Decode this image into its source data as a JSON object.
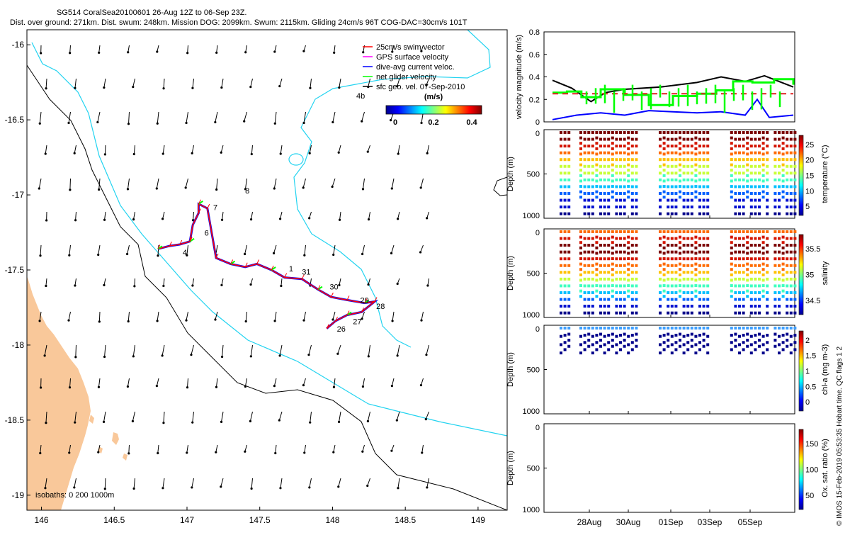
{
  "header": {
    "title": "SG514 CoralSea20100601 26-Aug 12Z to 06-Sep 23Z.",
    "subtitle": "Dist. over ground: 271km. Dist. swum: 248km. Mission DOG: 2099km. Swum: 2115km. Gliding 24cm/s 96T COG-DAC=30cm/s 101T"
  },
  "footer_note": "© IMOS 15-Feb-2019 05:53:35 Hobart time. QC flags 1  2",
  "colors": {
    "land": "#f9c89a",
    "isobath_200": "#000000",
    "isobath_1000": "#22d3f0",
    "swim": "#ff0000",
    "gps": "#ff00ff",
    "dac": "#0000ff",
    "net": "#00ff00",
    "sfc": "#000000",
    "mean_line": "#e02020"
  },
  "chart_data": [
    {
      "type": "map",
      "xlim": [
        145.9,
        149.2
      ],
      "ylim": [
        -19.1,
        -15.9
      ],
      "xticks": [
        "146",
        "146.5",
        "147",
        "147.5",
        "148",
        "148.5",
        "149"
      ],
      "yticks": [
        "-16",
        "-16.5",
        "-17",
        "-17.5",
        "-18",
        "-18.5",
        "-19"
      ],
      "legend": [
        {
          "label": "25cm/s swim vector",
          "color": "#ff0000"
        },
        {
          "label": "GPS surface velocity",
          "color": "#ff00ff"
        },
        {
          "label": "dive-avg current veloc.",
          "color": "#0000ff"
        },
        {
          "label": "net glider velocity",
          "color": "#00ff00"
        },
        {
          "label": "sfc geo. vel. 07-Sep-2010",
          "color": "#000000"
        }
      ],
      "colorbar": {
        "label": "(m/s)",
        "ticks": [
          "0",
          "0.2",
          "0.4"
        ],
        "range": [
          0,
          0.5
        ]
      },
      "isobath_label": "isobaths: 0   200  1000m",
      "stray_label": "4b",
      "track_labels": [
        {
          "text": "7",
          "lon": 147.18,
          "lat": -17.1
        },
        {
          "text": "6",
          "lon": 147.12,
          "lat": -17.27
        },
        {
          "text": "4",
          "lon": 146.97,
          "lat": -17.4
        },
        {
          "text": "1",
          "lon": 147.7,
          "lat": -17.51
        },
        {
          "text": "31",
          "lon": 147.79,
          "lat": -17.53
        },
        {
          "text": "30",
          "lon": 147.98,
          "lat": -17.63
        },
        {
          "text": "29",
          "lon": 148.19,
          "lat": -17.72
        },
        {
          "text": "28",
          "lon": 148.3,
          "lat": -17.76
        },
        {
          "text": "27",
          "lon": 148.14,
          "lat": -17.86
        },
        {
          "text": "26",
          "lon": 148.03,
          "lat": -17.91
        },
        {
          "text": "8",
          "lon": 147.4,
          "lat": -16.99
        }
      ],
      "track": [
        [
          146.8,
          -17.36
        ],
        [
          146.88,
          -17.34
        ],
        [
          146.95,
          -17.33
        ],
        [
          147.02,
          -17.31
        ],
        [
          147.04,
          -17.2
        ],
        [
          147.08,
          -17.12
        ],
        [
          147.08,
          -17.06
        ],
        [
          147.14,
          -17.09
        ],
        [
          147.2,
          -17.42
        ],
        [
          147.3,
          -17.46
        ],
        [
          147.4,
          -17.48
        ],
        [
          147.48,
          -17.46
        ],
        [
          147.58,
          -17.5
        ],
        [
          147.67,
          -17.55
        ],
        [
          147.79,
          -17.56
        ],
        [
          147.9,
          -17.63
        ],
        [
          147.99,
          -17.68
        ],
        [
          148.1,
          -17.7
        ],
        [
          148.22,
          -17.72
        ],
        [
          148.29,
          -17.71
        ],
        [
          148.2,
          -17.78
        ],
        [
          148.1,
          -17.8
        ],
        [
          148.02,
          -17.84
        ],
        [
          147.96,
          -17.89
        ]
      ]
    },
    {
      "type": "line",
      "ylabel": "velocity magnitude (m/s)",
      "ylim": [
        0,
        0.8
      ],
      "yticks": [
        "0",
        "0.2",
        "0.4",
        "0.6",
        "0.8"
      ],
      "series": [
        {
          "color": "#000000",
          "x": [
            0,
            0.08,
            0.16,
            0.22,
            0.3,
            0.45,
            0.6,
            0.7,
            0.8,
            0.88,
            1.0
          ],
          "values": [
            0.37,
            0.3,
            0.18,
            0.26,
            0.29,
            0.31,
            0.35,
            0.4,
            0.36,
            0.41,
            0.31
          ]
        },
        {
          "color": "#00ff00",
          "x": [
            0,
            0.06,
            0.12,
            0.2,
            0.3,
            0.4,
            0.5,
            0.6,
            0.68,
            0.75,
            0.83,
            0.92,
            1.0
          ],
          "values": [
            0.26,
            0.27,
            0.22,
            0.29,
            0.24,
            0.15,
            0.23,
            0.25,
            0.28,
            0.36,
            0.35,
            0.38,
            0.33
          ]
        },
        {
          "color": "#0000ff",
          "x": [
            0,
            0.1,
            0.2,
            0.3,
            0.4,
            0.5,
            0.6,
            0.7,
            0.8,
            0.85,
            0.9,
            1.0
          ],
          "values": [
            0.02,
            0.06,
            0.08,
            0.06,
            0.1,
            0.09,
            0.08,
            0.09,
            0.06,
            0.2,
            0.04,
            0.06
          ]
        },
        {
          "color": "#e02020",
          "dashed": true,
          "x": [
            0,
            1
          ],
          "values": [
            0.25,
            0.25
          ]
        }
      ]
    },
    {
      "type": "scatter",
      "ylabel": "Depth (m)",
      "yticks": [
        "0",
        "500",
        "1000"
      ],
      "colorbar_label": "temperature (°C)",
      "colorbar_ticks": [
        "5",
        "10",
        "15",
        "20",
        "25"
      ],
      "palette": "jet"
    },
    {
      "type": "scatter",
      "ylabel": "Depth (m)",
      "yticks": [
        "0",
        "500",
        "1000"
      ],
      "colorbar_label": "salinity",
      "colorbar_ticks": [
        "34.5",
        "35",
        "35.5"
      ],
      "palette": "jet"
    },
    {
      "type": "scatter",
      "ylabel": "Depth (m)",
      "yticks": [
        "0",
        "500",
        "1000"
      ],
      "colorbar_label": "chl-a (mg m-3)",
      "colorbar_ticks": [
        "0",
        "0.5",
        "1",
        "1.5",
        "2"
      ],
      "palette": "jet"
    },
    {
      "type": "scatter",
      "ylabel": "Depth (m)",
      "yticks": [
        "0",
        "500",
        "1000"
      ],
      "colorbar_label": "Ox. sat. ratio (%)",
      "colorbar_ticks": [
        "50",
        "100",
        "150"
      ],
      "palette": "jet",
      "xticks": [
        "28Aug",
        "30Aug",
        "01Sep",
        "03Sep",
        "05Sep"
      ]
    }
  ]
}
